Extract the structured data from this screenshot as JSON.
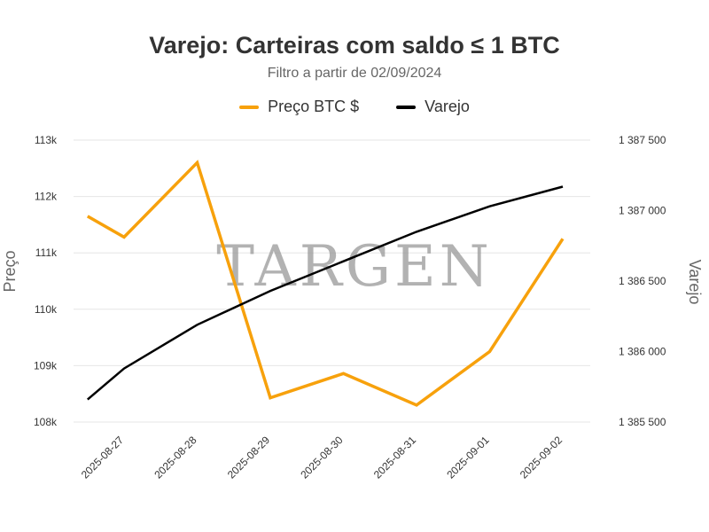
{
  "chart_data": {
    "type": "line",
    "title": "Varejo: Carteiras com saldo ≤ 1 BTC",
    "subtitle": "Filtro a partir de 02/09/2024",
    "watermark": "TARGEN",
    "categories": [
      "2025-08-27",
      "2025-08-28",
      "2025-08-29",
      "2025-08-30",
      "2025-08-31",
      "2025-09-01",
      "2025-09-02"
    ],
    "x_offset_start": 2025.08,
    "left_axis": {
      "label": "Preço",
      "ylim": [
        108000,
        113000
      ],
      "ticks": [
        108000,
        109000,
        110000,
        111000,
        112000,
        113000
      ],
      "tick_labels": [
        "108k",
        "109k",
        "110k",
        "111k",
        "112k",
        "113k"
      ]
    },
    "right_axis": {
      "label": "Varejo",
      "ylim": [
        1385500,
        1387500
      ],
      "ticks": [
        1385500,
        1386000,
        1386500,
        1387000,
        1387500
      ],
      "tick_labels": [
        "1 385 500",
        "1 386 000",
        "1 386 500",
        "1 387 000",
        "1 387 500"
      ]
    },
    "series": [
      {
        "name": "Preço BTC $",
        "color": "#F7A10C",
        "axis": "left",
        "points": [
          {
            "x": "2025-08-26 12:00",
            "y": 111650
          },
          {
            "x": "2025-08-27",
            "y": 111280
          },
          {
            "x": "2025-08-28",
            "y": 112600
          },
          {
            "x": "2025-08-29",
            "y": 108430
          },
          {
            "x": "2025-08-30",
            "y": 108860
          },
          {
            "x": "2025-08-31",
            "y": 108300
          },
          {
            "x": "2025-09-01",
            "y": 109250
          },
          {
            "x": "2025-09-02",
            "y": 111250
          }
        ]
      },
      {
        "name": "Varejo",
        "color": "#000000",
        "axis": "right",
        "points": [
          {
            "x": "2025-08-26 12:00",
            "y": 1385660
          },
          {
            "x": "2025-08-27",
            "y": 1385880
          },
          {
            "x": "2025-08-28",
            "y": 1386190
          },
          {
            "x": "2025-08-29",
            "y": 1386430
          },
          {
            "x": "2025-08-30",
            "y": 1386640
          },
          {
            "x": "2025-08-31",
            "y": 1386850
          },
          {
            "x": "2025-09-01",
            "y": 1387030
          },
          {
            "x": "2025-09-02",
            "y": 1387170
          }
        ]
      }
    ],
    "grid": true,
    "legend_position": "top-center"
  }
}
